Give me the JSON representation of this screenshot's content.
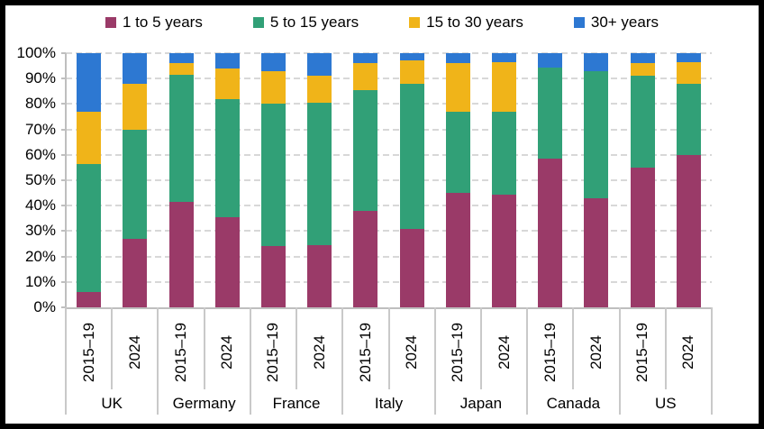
{
  "chart_data": {
    "type": "bar",
    "stacked": true,
    "percent": true,
    "title": "",
    "legend_position": "top",
    "x_axis": {
      "groups": [
        "UK",
        "Germany",
        "France",
        "Italy",
        "Japan",
        "Canada",
        "US"
      ],
      "bar_labels": [
        "2015–19",
        "2024"
      ]
    },
    "y_axis": {
      "min": 0,
      "max": 100,
      "ticks": [
        "0%",
        "10%",
        "20%",
        "30%",
        "40%",
        "50%",
        "60%",
        "70%",
        "80%",
        "90%",
        "100%"
      ],
      "grid": "dashed"
    },
    "series": [
      {
        "name": "1 to 5 years",
        "color": "#9a3a68",
        "values": [
          6,
          27,
          41.5,
          35.5,
          24,
          24.5,
          38,
          31,
          45,
          44.5,
          58.5,
          43,
          55,
          60
        ]
      },
      {
        "name": "5 to 15 years",
        "color": "#31a077",
        "values": [
          50.5,
          43,
          50,
          46.5,
          56,
          56,
          47.5,
          57,
          32,
          32.5,
          36,
          50,
          36,
          28
        ]
      },
      {
        "name": "15 to 30 years",
        "color": "#f0b419",
        "values": [
          20.5,
          18,
          4.5,
          12,
          13,
          10.5,
          10.5,
          9,
          19,
          19.5,
          0,
          0,
          5,
          8.5
        ]
      },
      {
        "name": "30+ years",
        "color": "#2d78d2",
        "values": [
          23,
          12,
          4,
          6,
          7,
          9,
          4,
          3,
          4,
          3.5,
          5.5,
          7,
          4,
          3.5
        ]
      }
    ]
  },
  "style": {
    "background": "#ffffff",
    "frame_color": "#000000",
    "grid_color": "#d8d8d8",
    "axis_color": "#bfbfbf",
    "text_color": "#000000"
  }
}
